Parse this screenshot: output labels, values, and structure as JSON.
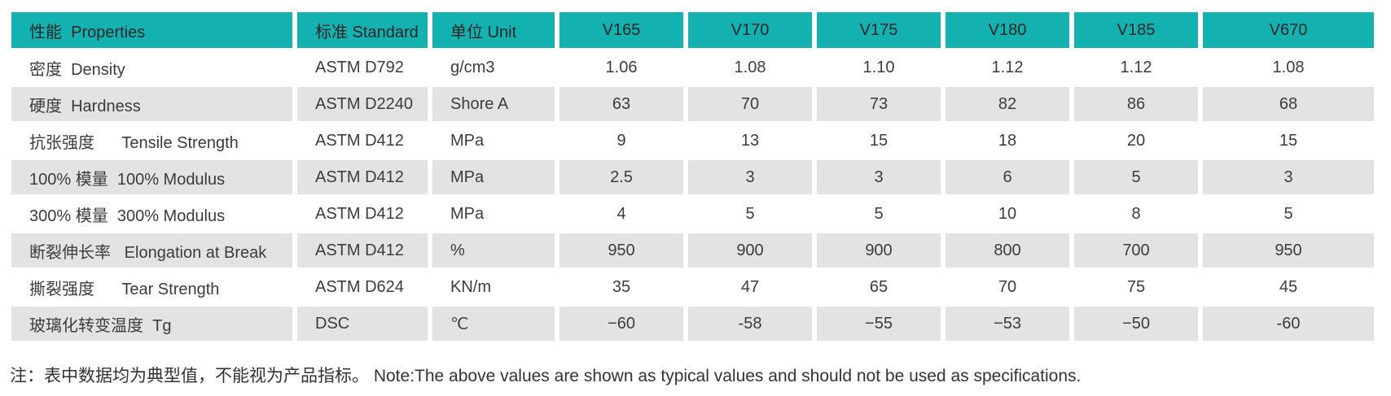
{
  "theme": {
    "header_bg": "#14b1b1",
    "stripe_bg": "#e3e3e3",
    "text_color": "#3c3c3c"
  },
  "table": {
    "columns": [
      "性能  Properties",
      "标准 Standard",
      "单位 Unit",
      "V165",
      "V170",
      "V175",
      "V180",
      "V185",
      "V670"
    ],
    "rows": [
      {
        "property": "密度  Density",
        "standard": "ASTM D792",
        "unit": "g/cm3",
        "values": [
          "1.06",
          "1.08",
          "1.10",
          "1.12",
          "1.12",
          "1.08"
        ]
      },
      {
        "property": "硬度  Hardness",
        "standard": "ASTM D2240",
        "unit": "Shore A",
        "values": [
          "63",
          "70",
          "73",
          "82",
          "86",
          "68"
        ]
      },
      {
        "property": "抗张强度      Tensile Strength",
        "standard": "ASTM D412",
        "unit": "MPa",
        "values": [
          "9",
          "13",
          "15",
          "18",
          "20",
          "15"
        ]
      },
      {
        "property": "100% 模量  100% Modulus",
        "standard": "ASTM D412",
        "unit": "MPa",
        "values": [
          "2.5",
          "3",
          "3",
          "6",
          "5",
          "3"
        ]
      },
      {
        "property": "300% 模量  300% Modulus",
        "standard": "ASTM D412",
        "unit": "MPa",
        "values": [
          "4",
          "5",
          "5",
          "10",
          "8",
          "5"
        ]
      },
      {
        "property": "断裂伸长率   Elongation at Break",
        "standard": "ASTM D412",
        "unit": "%",
        "values": [
          "950",
          "900",
          "900",
          "800",
          "700",
          "950"
        ]
      },
      {
        "property": "撕裂强度      Tear Strength",
        "standard": "ASTM D624",
        "unit": "KN/m",
        "values": [
          "35",
          "47",
          "65",
          "70",
          "75",
          "45"
        ]
      },
      {
        "property": "玻璃化转变温度  Tg",
        "standard": "DSC",
        "unit": "℃",
        "values": [
          "−60",
          "-58",
          "−55",
          "−53",
          "−50",
          "-60"
        ]
      }
    ]
  },
  "note": "注：表中数据均为典型值，不能视为产品指标。 Note:The above values are shown as typical values and should not be used as specifications."
}
